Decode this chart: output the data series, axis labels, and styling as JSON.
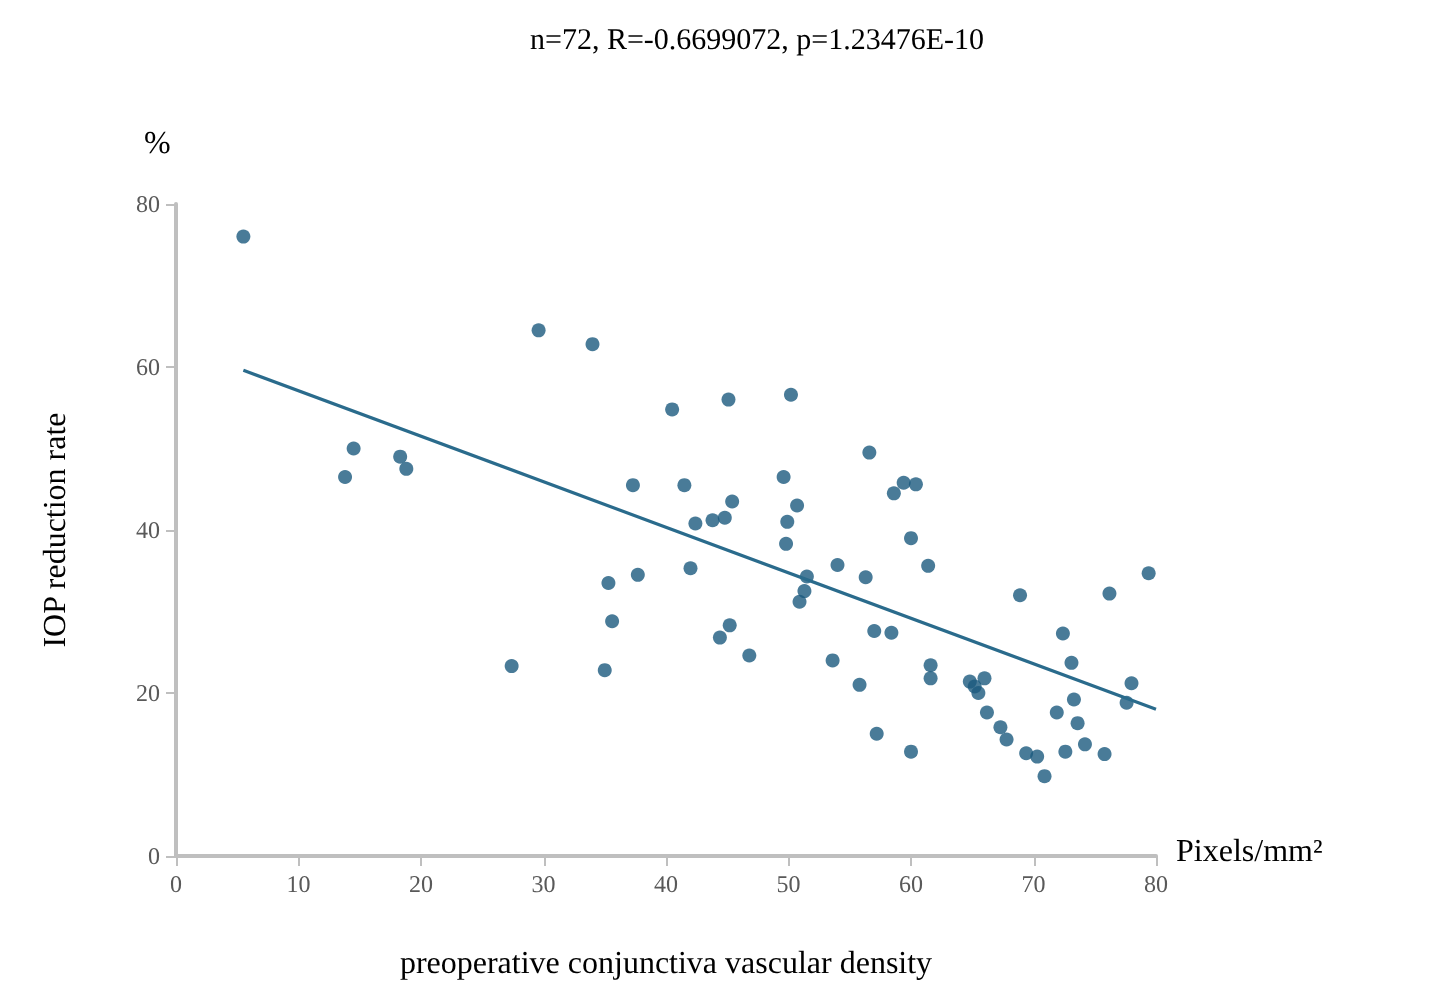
{
  "chart_data": {
    "type": "scatter",
    "title": "n=72, R=-0.6699072, p=1.23476E-10",
    "xlabel": "preoperative conjunctiva vascular density",
    "ylabel": "IOP reduction rate",
    "annotations": [
      "%",
      "Pixels/mm²"
    ],
    "xlim": [
      0,
      80
    ],
    "xticks": [
      0,
      10,
      20,
      30,
      40,
      50,
      60,
      70,
      80
    ],
    "ylim": [
      0,
      80
    ],
    "yticks": [
      0,
      20,
      40,
      60,
      80
    ],
    "grid": false,
    "series": [
      {
        "marker": "circle",
        "color": "#1b5a7e",
        "x": [
          5.5,
          13.8,
          14.5,
          18.3,
          18.8,
          27.4,
          29.6,
          34,
          35,
          35.3,
          35.6,
          37.3,
          37.7,
          40.5,
          41.5,
          42,
          42.4,
          43.8,
          44.4,
          44.8,
          45.1,
          45.2,
          45.4,
          46.8,
          49.6,
          49.8,
          49.9,
          50.2,
          50.7,
          50.9,
          51.3,
          51.5,
          53.6,
          54,
          55.8,
          56.3,
          56.6,
          57,
          57.2,
          58.4,
          58.6,
          59.4,
          60,
          60,
          60.4,
          61.4,
          61.6,
          61.6,
          64.8,
          65.2,
          65.5,
          66,
          66.2,
          67.3,
          67.8,
          68.9,
          69.4,
          70.3,
          70.9,
          71.9,
          72.4,
          72.6,
          73.1,
          73.3,
          73.6,
          74.2,
          75.8,
          76.2,
          77.6,
          78,
          79.4
        ],
        "values": [
          76,
          46.5,
          50,
          49,
          47.5,
          23.3,
          64.5,
          62.8,
          22.8,
          33.5,
          28.8,
          45.5,
          34.5,
          54.8,
          45.5,
          35.3,
          40.8,
          41.2,
          26.8,
          41.5,
          56,
          28.3,
          43.5,
          24.6,
          46.5,
          38.3,
          41,
          56.6,
          43,
          31.2,
          32.5,
          34.3,
          24,
          35.7,
          21,
          34.2,
          49.5,
          27.6,
          15,
          27.4,
          44.5,
          45.8,
          39,
          12.8,
          45.6,
          35.6,
          23.4,
          21.8,
          21.4,
          20.8,
          20,
          21.8,
          17.6,
          15.8,
          14.3,
          32,
          12.6,
          12.2,
          9.8,
          17.6,
          27.3,
          12.8,
          23.7,
          19.2,
          16.3,
          13.7,
          12.5,
          32.2,
          18.8,
          21.2,
          34.7
        ]
      },
      {
        "type": "line",
        "marker": "none",
        "color": "#2a6b8c",
        "x": [
          5.5,
          80
        ],
        "values": [
          59.6,
          18
        ]
      }
    ]
  }
}
